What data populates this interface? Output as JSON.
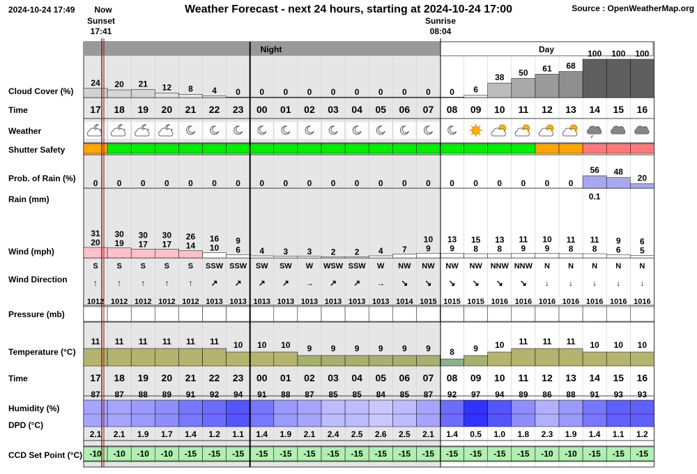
{
  "header": {
    "timestamp": "2024-10-24 17:49",
    "now_label": "Now",
    "title": "Weather Forecast - next 24 hours, starting at 2024-10-24 17:00",
    "source": "Source : OpenWeatherMap.org",
    "sunset_label": "Sunset",
    "sunset_time": "17:41",
    "sunrise_label": "Sunrise",
    "sunrise_time": "08:04",
    "night_label": "Night",
    "day_label": "Day"
  },
  "labels": {
    "cloud": "Cloud Cover (%)",
    "time": "Time",
    "weather": "Weather",
    "shutter": "Shutter Safety",
    "prob": "Prob. of Rain (%)",
    "rain": "Rain (mm)",
    "wind": "Wind (mph)",
    "wind_dir": "Wind Direction",
    "pressure": "Pressure (mb)",
    "temperature": "Temperature (°C)",
    "time2": "Time",
    "humidity": "Humidity (%)",
    "dpd": "DPD (°C)",
    "ccd": "CCD Set Point (°C)"
  },
  "colors": {
    "night_bg": "#e6e6e6",
    "day_bg": "#ffffff",
    "header_night": "#999999",
    "now_line": "#cc0000",
    "safe_green": "#00ee00",
    "caution_orange": "#ffa500",
    "unsafe_red": "#ff7a7a",
    "rain_bar": "#a8a8f0",
    "ccd_bg": "#b0f0b0"
  },
  "chart_data": {
    "type": "table",
    "hours": [
      "17",
      "18",
      "19",
      "20",
      "21",
      "22",
      "23",
      "00",
      "01",
      "02",
      "03",
      "04",
      "05",
      "06",
      "07",
      "08",
      "09",
      "10",
      "11",
      "12",
      "13",
      "14",
      "15",
      "16"
    ],
    "cloud_cover": [
      24,
      20,
      21,
      12,
      8,
      4,
      0,
      0,
      0,
      0,
      0,
      0,
      0,
      0,
      0,
      0,
      6,
      38,
      50,
      61,
      68,
      100,
      100,
      100
    ],
    "weather_icons": [
      "partly-cloudy-night-icon",
      "partly-cloudy-night-icon",
      "partly-cloudy-night-icon",
      "partly-cloudy-night-icon",
      "moon-icon",
      "moon-icon",
      "moon-icon",
      "moon-icon",
      "moon-icon",
      "moon-icon",
      "moon-icon",
      "moon-icon",
      "moon-icon",
      "moon-icon",
      "moon-icon",
      "moon-icon",
      "sun-icon",
      "partly-cloudy-day-icon",
      "partly-cloudy-day-icon",
      "partly-cloudy-day-icon",
      "partly-cloudy-day-icon",
      "rain-cloud-icon",
      "cloud-icon",
      "cloud-icon"
    ],
    "shutter_safety": [
      "caution",
      "safe",
      "safe",
      "safe",
      "safe",
      "safe",
      "safe",
      "safe",
      "safe",
      "safe",
      "safe",
      "safe",
      "safe",
      "safe",
      "safe",
      "safe",
      "safe",
      "safe",
      "safe",
      "caution",
      "caution",
      "unsafe",
      "unsafe",
      "unsafe"
    ],
    "prob_of_rain": [
      0,
      0,
      0,
      0,
      0,
      0,
      0,
      0,
      0,
      0,
      0,
      0,
      0,
      0,
      0,
      0,
      0,
      0,
      0,
      0,
      0,
      56,
      48,
      20
    ],
    "rain_mm": [
      null,
      null,
      null,
      null,
      null,
      null,
      null,
      null,
      null,
      null,
      null,
      null,
      null,
      null,
      null,
      null,
      null,
      null,
      null,
      null,
      null,
      "0.1",
      null,
      null
    ],
    "wind_gust": [
      31,
      30,
      30,
      30,
      26,
      16,
      9,
      null,
      null,
      null,
      null,
      null,
      null,
      null,
      10,
      13,
      15,
      13,
      11,
      10,
      11,
      11,
      9,
      6
    ],
    "wind_speed": [
      20,
      19,
      17,
      17,
      14,
      10,
      6,
      4,
      3,
      3,
      2,
      2,
      4,
      7,
      9,
      9,
      8,
      8,
      9,
      9,
      8,
      8,
      6,
      5
    ],
    "wind_dir_text": [
      "S",
      "S",
      "S",
      "S",
      "S",
      "SSW",
      "SSW",
      "SW",
      "SW",
      "W",
      "WSW",
      "SSW",
      "W",
      "NW",
      "NW",
      "NW",
      "NW",
      "NNW",
      "NNW",
      "N",
      "N",
      "N",
      "N",
      "N"
    ],
    "wind_dir_arrow": [
      "↑",
      "↑",
      "↑",
      "↑",
      "↑",
      "↗",
      "↗",
      "↗",
      "↗",
      "→",
      "↗",
      "↗",
      "→",
      "↘",
      "↘",
      "↘",
      "↘",
      "↘",
      "↘",
      "↓",
      "↓",
      "↓",
      "↓",
      "↓"
    ],
    "pressure": [
      1012,
      1012,
      1012,
      1012,
      1012,
      1013,
      1013,
      1013,
      1013,
      1013,
      1013,
      1013,
      1013,
      1014,
      1015,
      1015,
      1015,
      1016,
      1016,
      1016,
      1016,
      1016,
      1016,
      1016
    ],
    "temperature": [
      11,
      11,
      11,
      11,
      11,
      11,
      10,
      10,
      10,
      9,
      9,
      9,
      9,
      9,
      9,
      8,
      9,
      10,
      11,
      11,
      11,
      10,
      10,
      10
    ],
    "humidity": [
      87,
      87,
      88,
      89,
      91,
      92,
      94,
      91,
      88,
      87,
      85,
      85,
      84,
      85,
      87,
      92,
      97,
      94,
      89,
      86,
      88,
      91,
      93,
      93
    ],
    "dpd": [
      "2.1",
      "2.1",
      "1.9",
      "1.7",
      "1.4",
      "1.2",
      "1.1",
      "1.4",
      "1.9",
      "2.1",
      "2.4",
      "2.5",
      "2.6",
      "2.5",
      "2.1",
      "1.4",
      "0.5",
      "1.0",
      "1.8",
      "2.3",
      "1.9",
      "1.4",
      "1.1",
      "1.2"
    ],
    "ccd_set_point": [
      -10,
      -10,
      -10,
      -10,
      -15,
      -15,
      -15,
      -15,
      -15,
      -15,
      -15,
      -15,
      -15,
      -15,
      -15,
      -15,
      -15,
      -15,
      -15,
      -10,
      -10,
      -15,
      -15,
      -15
    ]
  }
}
